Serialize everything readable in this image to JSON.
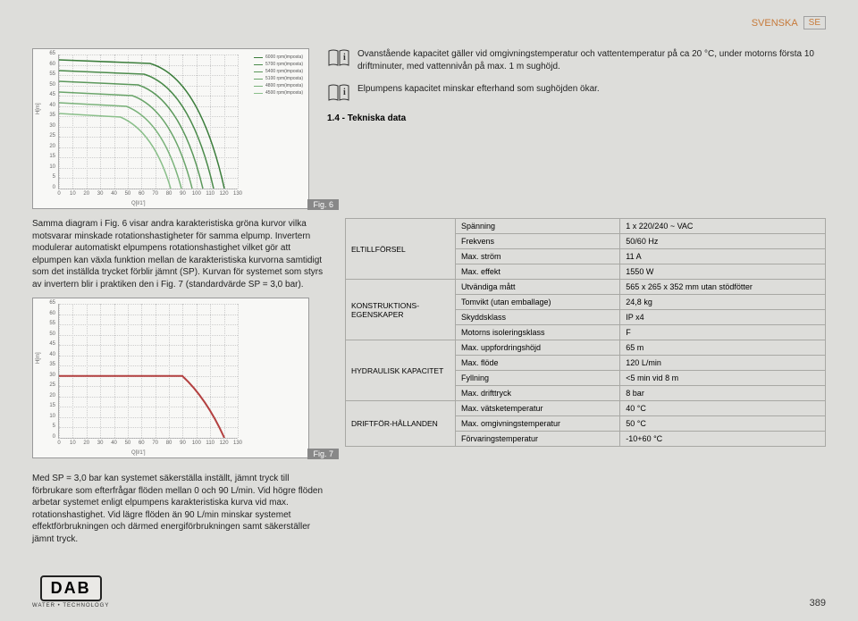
{
  "header": {
    "lang_label": "SVENSKA",
    "lang_code": "SE"
  },
  "fig6": {
    "label": "Fig. 6",
    "type": "line",
    "ylabel": "H[m]",
    "xlabel": "Q[l/1']",
    "ylim": [
      0,
      65
    ],
    "ytick_step": 5,
    "xlim": [
      0,
      130
    ],
    "xtick_step": 10,
    "background_color": "#f8f8f6",
    "grid_color": "#cccccc",
    "series": [
      {
        "label": "6000 rpm(imposta)",
        "color": "#3b7d3b"
      },
      {
        "label": "5700 rpm(imposta)",
        "color": "#4a8a4a"
      },
      {
        "label": "5400 rpm(imposta)",
        "color": "#5a975a"
      },
      {
        "label": "5100 rpm(imposta)",
        "color": "#6aa56a"
      },
      {
        "label": "4800 rpm(imposta)",
        "color": "#7ab27a"
      },
      {
        "label": "4500 rpm(imposta)",
        "color": "#8abf8a"
      }
    ]
  },
  "info1": "Ovanstående kapacitet gäller vid omgivningstemperatur och vattentemperatur på ca 20 °C, under motorns första 10 driftminuter, med vattennivån på max. 1 m sughöjd.",
  "info2": "Elpumpens kapacitet minskar efterhand som sughöjden ökar.",
  "section14": "1.4 - Tekniska data",
  "left_para1": "Samma diagram i Fig. 6 visar andra karakteristiska gröna kurvor vilka motsvarar minskade rotationshastigheter för samma elpump. Invertern modulerar automatiskt elpumpens rotationshastighet vilket gör att elpumpen kan växla funktion mellan de karakteristiska kurvorna samtidigt som det inställda trycket förblir jämnt (SP). Kurvan för systemet som styrs av invertern blir i praktiken den i Fig. 7 (standardvärde SP = 3,0 bar).",
  "fig7": {
    "label": "Fig. 7",
    "type": "line",
    "ylabel": "H[m]",
    "xlabel": "Q[l/1']",
    "ylim": [
      0,
      65
    ],
    "ytick_step": 5,
    "xlim": [
      0,
      130
    ],
    "xtick_step": 10,
    "background_color": "#f8f8f6",
    "series_color": "#b34040",
    "sp_line_y": 30
  },
  "left_para2": "Med SP = 3,0 bar kan systemet säkerställa inställt, jämnt tryck till förbrukare som efterfrågar flöden mellan 0 och 90 L/min. Vid högre flöden arbetar systemet enligt elpumpens karakteristiska kurva vid max. rotationshastighet. Vid lägre flöden än 90 L/min minskar systemet effektförbrukningen och därmed energiförbrukningen samt säkerställer jämnt tryck.",
  "tech": {
    "categories": [
      {
        "name": "ELTILLFÖRSEL",
        "rows": [
          {
            "k": "Spänning",
            "v": "1 x 220/240 ~ VAC"
          },
          {
            "k": "Frekvens",
            "v": "50/60 Hz"
          },
          {
            "k": "Max. ström",
            "v": "11 A"
          },
          {
            "k": "Max. effekt",
            "v": "1550 W"
          }
        ]
      },
      {
        "name": "KONSTRUKTIONS-EGENSKAPER",
        "rows": [
          {
            "k": "Utvändiga mått",
            "v": "565 x 265 x 352 mm utan stödfötter"
          },
          {
            "k": "Tomvikt (utan emballage)",
            "v": "24,8 kg"
          },
          {
            "k": "Skyddsklass",
            "v": "IP x4"
          },
          {
            "k": "Motorns isoleringsklass",
            "v": "F"
          }
        ]
      },
      {
        "name": "HYDRAULISK KAPACITET",
        "rows": [
          {
            "k": "Max. uppfordringshöjd",
            "v": "65 m"
          },
          {
            "k": "Max. flöde",
            "v": "120 L/min"
          },
          {
            "k": "Fyllning",
            "v": "<5 min vid 8 m"
          },
          {
            "k": "Max. drifttryck",
            "v": "8 bar"
          }
        ]
      },
      {
        "name": "DRIFTFÖR-HÅLLANDEN",
        "rows": [
          {
            "k": "Max. vätsketemperatur",
            "v": "40 °C"
          },
          {
            "k": "Max. omgivningstemperatur",
            "v": "50 °C"
          },
          {
            "k": "Förvaringstemperatur",
            "v": "-10+60 °C"
          }
        ]
      }
    ]
  },
  "logo": {
    "brand": "DAB",
    "sub": "WATER • TECHNOLOGY"
  },
  "page_number": "389"
}
